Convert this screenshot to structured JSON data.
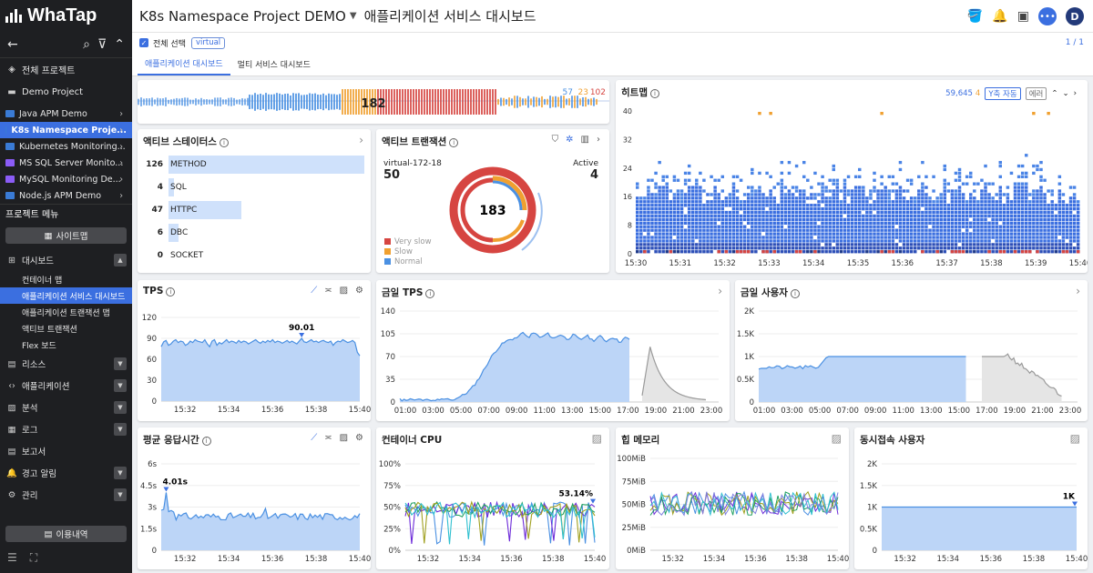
{
  "brand": {
    "name": "WhaTap"
  },
  "header": {
    "project": "K8s Namespace Project DEMO",
    "page_title": "애플리케이션 서비스 대시보드",
    "avatar": "D"
  },
  "filter": {
    "select_all": "전체 선택",
    "tag": "virtual",
    "pager": "1 / 1"
  },
  "tabs": [
    {
      "label": "애플리케이션 대시보드",
      "active": true
    },
    {
      "label": "멀티 서비스 대시보드",
      "active": false
    }
  ],
  "sidebar": {
    "all_projects": "전체 프로젝트",
    "demo_project": "Demo Project",
    "projects": [
      {
        "label": "Java APM Demo",
        "color": "#3a7bd5"
      },
      {
        "label": "K8s Namespace Proje...",
        "color": "#3a7bd5",
        "active": true
      },
      {
        "label": "Kubernetes Monitoring...",
        "color": "#3a7bd5"
      },
      {
        "label": "MS SQL Server Monito...",
        "color": "#8b5cf6"
      },
      {
        "label": "MySQL Monitoring De...",
        "color": "#8b5cf6"
      },
      {
        "label": "Node.js APM Demo",
        "color": "#3a7bd5"
      }
    ],
    "menu_title": "프로젝트 메뉴",
    "sitemap": "사이트맵",
    "dashboard": "대시보드",
    "dashboard_items": [
      "컨테이너 맵",
      "애플리케이션 서비스 대시보드",
      "애플리케이션 트랜잭션 맵",
      "액티브 트랜잭션",
      "Flex 보드"
    ],
    "menus": [
      "리소스",
      "애플리케이션",
      "분석",
      "로그",
      "보고서",
      "경고 알림",
      "관리"
    ],
    "usage": "이용내역"
  },
  "summary_bar": {
    "total": "182",
    "normal": "57",
    "slow": "23",
    "very_slow": "102"
  },
  "active_status": {
    "title": "액티브 스테이터스",
    "rows": [
      {
        "count": "126",
        "label": "METHOD",
        "ratio": 1.0
      },
      {
        "count": "4",
        "label": "SQL",
        "ratio": 0.03
      },
      {
        "count": "47",
        "label": "HTTPC",
        "ratio": 0.37
      },
      {
        "count": "6",
        "label": "DBC",
        "ratio": 0.05
      },
      {
        "count": "0",
        "label": "SOCKET",
        "ratio": 0
      }
    ]
  },
  "active_tx": {
    "title": "액티브 트랜잭션",
    "agent": "virtual-172-18",
    "agent_value": "50",
    "active_label": "Active",
    "active_value": "4",
    "total": "183",
    "legend": [
      {
        "label": "Very slow",
        "color": "#d64541"
      },
      {
        "label": "Slow",
        "color": "#f0a030"
      },
      {
        "label": "Normal",
        "color": "#4a90e2"
      }
    ]
  },
  "heatmap": {
    "title": "히트맵",
    "count_blue": "59,645",
    "count_orange": "4",
    "yaxis_btn": "Y축 자동",
    "error_btn": "에러",
    "chart_data": {
      "type": "heatmap",
      "yticks": [
        "40",
        "32",
        "24",
        "16",
        "8",
        "0"
      ],
      "xticks": [
        "15:30",
        "15:31",
        "15:32",
        "15:33",
        "15:34",
        "15:35",
        "15:36",
        "15:37",
        "15:38",
        "15:39",
        "15:40"
      ]
    }
  },
  "tps": {
    "title": "TPS",
    "chart_data": {
      "type": "area",
      "yticks": [
        "120",
        "90",
        "60",
        "30",
        "0"
      ],
      "xticks": [
        "15:32",
        "15:34",
        "15:36",
        "15:38",
        "15:40"
      ],
      "peak_label": "90.01",
      "values": [
        78,
        85,
        87,
        80,
        82,
        86,
        88,
        84,
        86,
        85,
        80,
        82,
        86,
        84,
        88,
        86,
        85,
        84,
        88,
        82,
        78,
        86,
        88,
        80,
        84,
        82,
        85,
        88,
        84,
        86,
        85,
        83,
        87,
        84,
        86,
        85,
        82,
        84,
        86,
        88,
        85,
        83,
        86,
        84,
        87,
        85,
        88,
        84,
        86,
        85,
        83,
        85,
        87,
        84,
        86,
        84,
        82,
        86,
        90,
        85,
        84,
        86,
        88,
        85,
        86,
        84,
        86,
        87,
        85,
        84,
        86,
        80,
        84,
        86,
        85,
        88,
        86,
        84,
        85,
        87,
        84,
        70,
        65
      ],
      "ymax": 120
    }
  },
  "today_tps": {
    "title": "금일 TPS",
    "chart_data": {
      "type": "area",
      "yticks": [
        "140",
        "105",
        "70",
        "35",
        "0"
      ],
      "xticks": [
        "01:00",
        "03:00",
        "05:00",
        "07:00",
        "09:00",
        "11:00",
        "13:00",
        "15:00",
        "17:00",
        "19:00",
        "21:00",
        "23:00"
      ],
      "ymax": 140
    }
  },
  "today_users": {
    "title": "금일 사용자",
    "chart_data": {
      "type": "area",
      "yticks": [
        "2K",
        "1.5K",
        "1K",
        "0.5K",
        "0"
      ],
      "xticks": [
        "01:00",
        "03:00",
        "05:00",
        "07:00",
        "09:00",
        "11:00",
        "13:00",
        "15:00",
        "17:00",
        "19:00",
        "21:00",
        "23:00"
      ],
      "ymax": 2000
    }
  },
  "avg_resp": {
    "title": "평균 응답시간",
    "chart_data": {
      "type": "area",
      "yticks": [
        "6s",
        "4.5s",
        "3s",
        "1.5s",
        "0"
      ],
      "xticks": [
        "15:32",
        "15:34",
        "15:36",
        "15:38",
        "15:40"
      ],
      "peak_label": "4.01s",
      "ymax": 6
    }
  },
  "container_cpu": {
    "title": "컨테이너 CPU",
    "chart_data": {
      "type": "line",
      "yticks": [
        "100%",
        "75%",
        "50%",
        "25%",
        "0%"
      ],
      "xticks": [
        "15:32",
        "15:34",
        "15:36",
        "15:38",
        "15:40"
      ],
      "peak_label": "53.14%",
      "ymax": 100
    }
  },
  "heap_memory": {
    "title": "힙 메모리",
    "chart_data": {
      "type": "line",
      "yticks": [
        "100MiB",
        "75MiB",
        "50MiB",
        "25MiB",
        "0MiB"
      ],
      "xticks": [
        "15:32",
        "15:34",
        "15:36",
        "15:38",
        "15:40"
      ],
      "ymax": 100
    }
  },
  "concurrent_users": {
    "title": "동시접속 사용자",
    "chart_data": {
      "type": "area",
      "yticks": [
        "2K",
        "1.5K",
        "1K",
        "0.5K",
        "0"
      ],
      "xticks": [
        "15:32",
        "15:34",
        "15:36",
        "15:38",
        "15:40"
      ],
      "peak_label": "1K",
      "values": [
        1000,
        1000,
        1000,
        1000,
        1000,
        1000,
        1000,
        1000,
        1000,
        1000
      ],
      "ymax": 2000
    }
  }
}
